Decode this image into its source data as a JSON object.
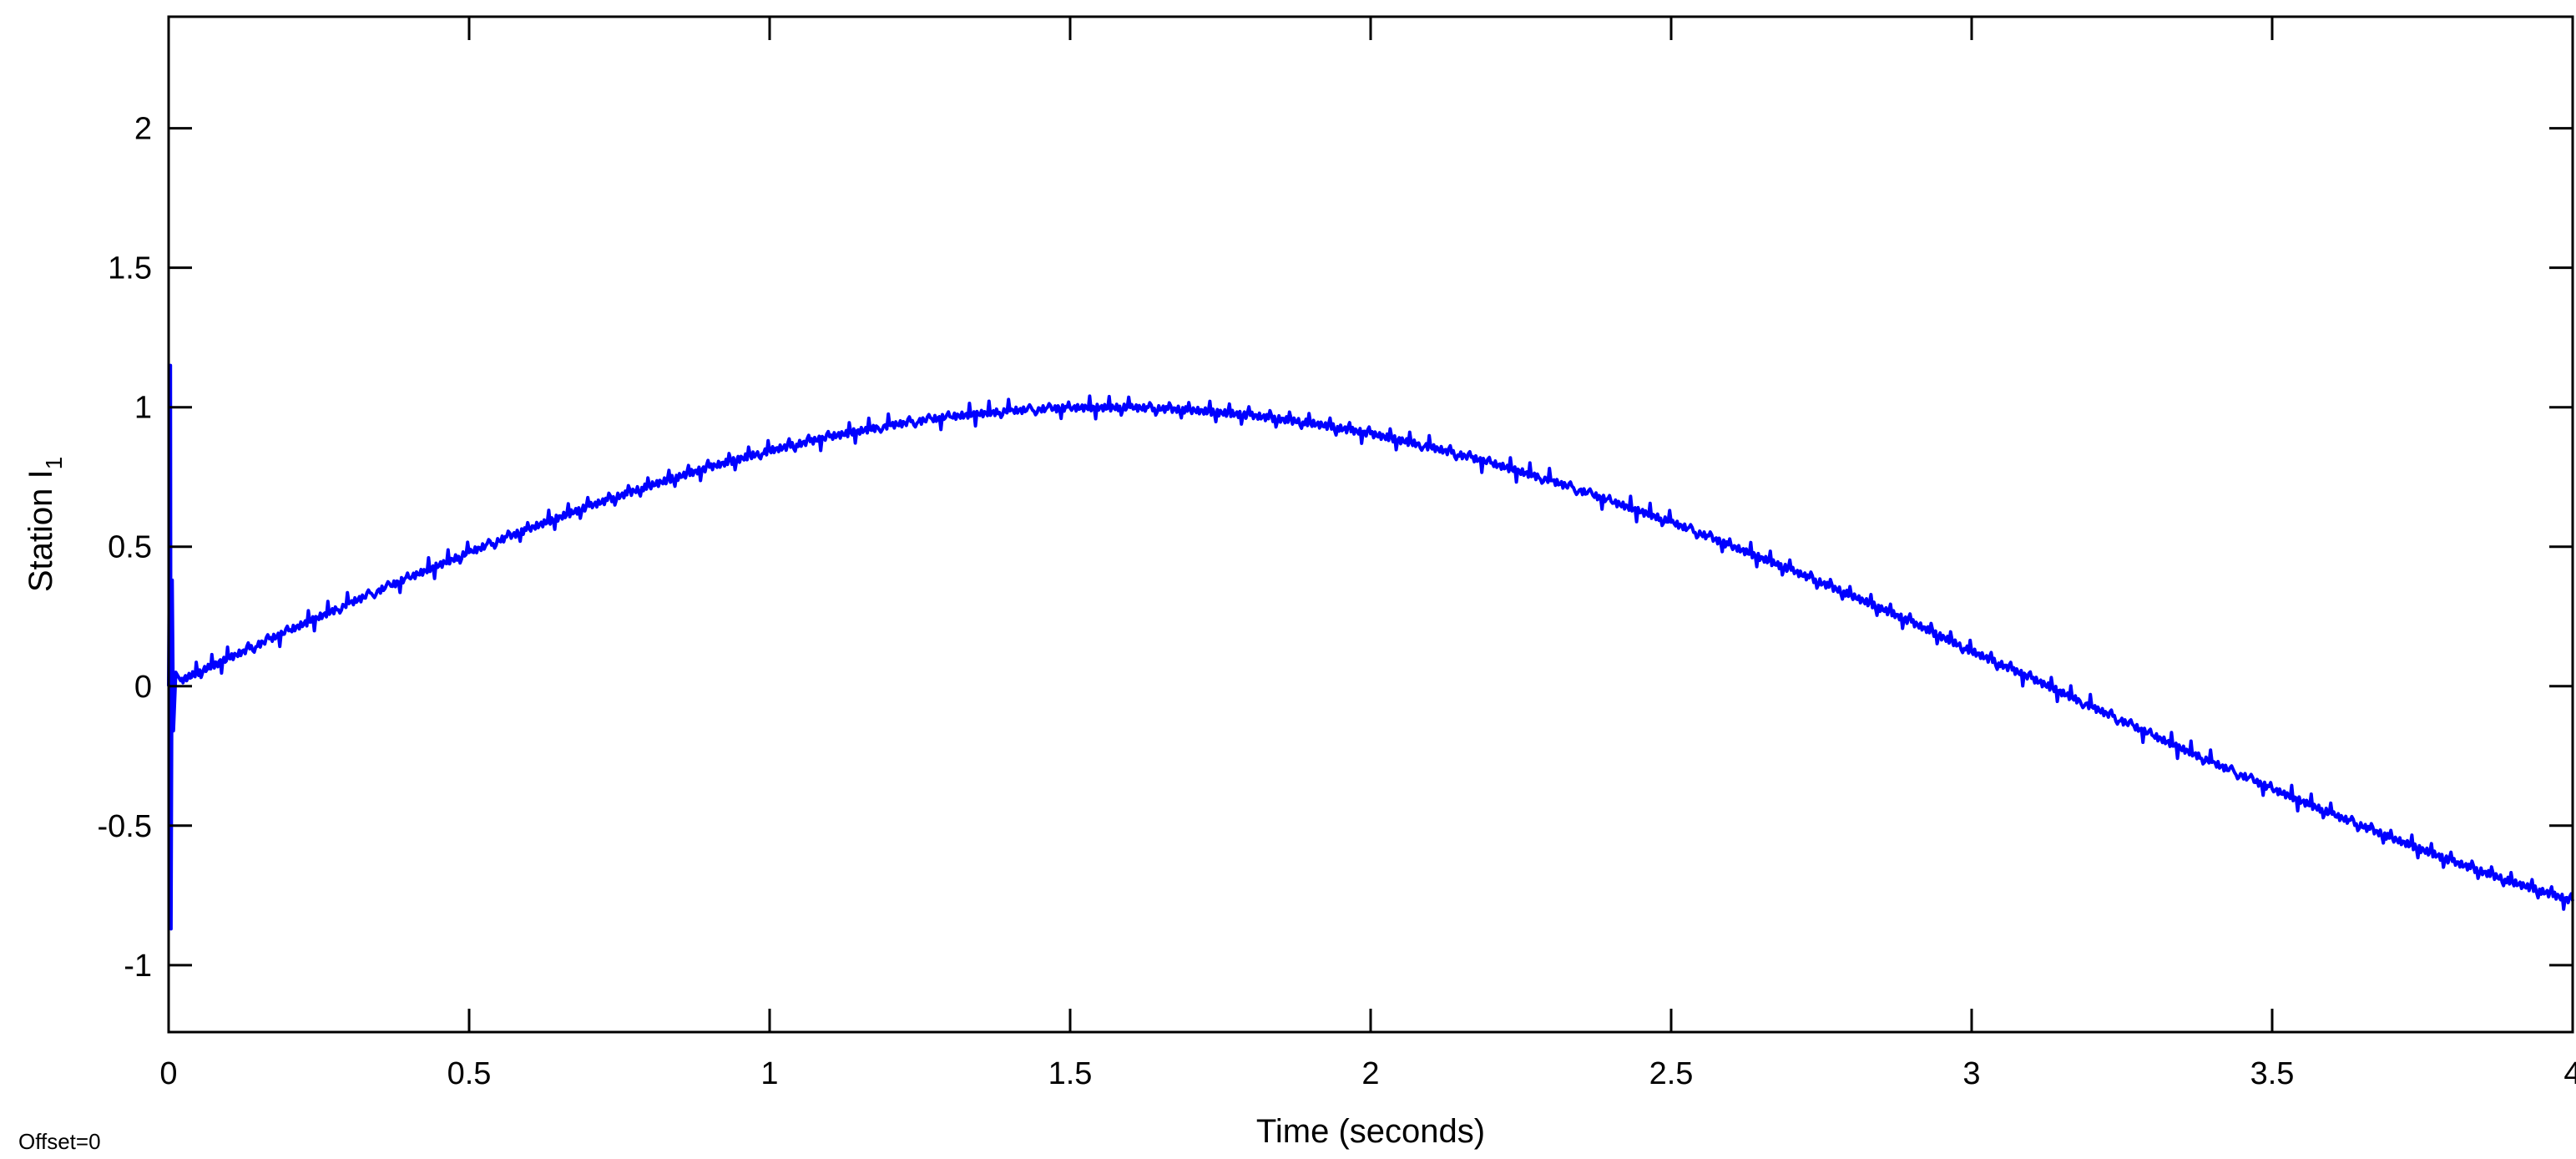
{
  "chart_data": {
    "type": "line",
    "title": "",
    "xlabel": "Time (seconds)",
    "ylabel": "Station I",
    "ylabel_subscript": "1",
    "footnote": "Offset=0",
    "xlim": [
      0,
      4
    ],
    "ylim": [
      -1.24,
      2.4
    ],
    "xticks": [
      0,
      0.5,
      1,
      1.5,
      2,
      2.5,
      3,
      3.5,
      4
    ],
    "xtick_labels": [
      "0",
      "0.5",
      "1",
      "1.5",
      "2",
      "2.5",
      "3",
      "3.5",
      "4"
    ],
    "yticks": [
      -1,
      -0.5,
      0,
      0.5,
      1,
      1.5,
      2
    ],
    "ytick_labels": [
      "-1",
      "-0.5",
      "0",
      "0.5",
      "1",
      "1.5",
      "2"
    ],
    "grid": false,
    "line_color": "#0000ff",
    "series": [
      {
        "x": [
          0,
          0.003,
          0.004,
          0.006,
          0.008,
          0.012,
          0.02,
          0.1,
          0.2,
          0.3,
          0.4,
          0.5,
          0.6,
          0.7,
          0.8,
          0.9,
          1.0,
          1.1,
          1.2,
          1.3,
          1.4,
          1.5,
          1.6,
          1.7,
          1.8,
          1.9,
          2.0,
          2.1,
          2.2,
          2.3,
          2.4,
          2.5,
          2.6,
          2.7,
          2.8,
          2.9,
          3.0,
          3.1,
          3.2,
          3.3,
          3.4,
          3.5,
          3.6,
          3.7,
          3.8,
          3.9,
          4.0
        ],
        "y": [
          0,
          1.15,
          -0.87,
          0.38,
          -0.16,
          0.05,
          0.02,
          0.1,
          0.199,
          0.296,
          0.389,
          0.479,
          0.565,
          0.645,
          0.718,
          0.785,
          0.844,
          0.894,
          0.935,
          0.966,
          0.987,
          0.998,
          0.999,
          0.99,
          0.971,
          0.943,
          0.905,
          0.857,
          0.8,
          0.737,
          0.663,
          0.588,
          0.503,
          0.416,
          0.325,
          0.23,
          0.125,
          0.028,
          -0.074,
          -0.175,
          -0.273,
          -0.368,
          -0.459,
          -0.545,
          -0.628,
          -0.703,
          -0.77
        ]
      }
    ]
  }
}
